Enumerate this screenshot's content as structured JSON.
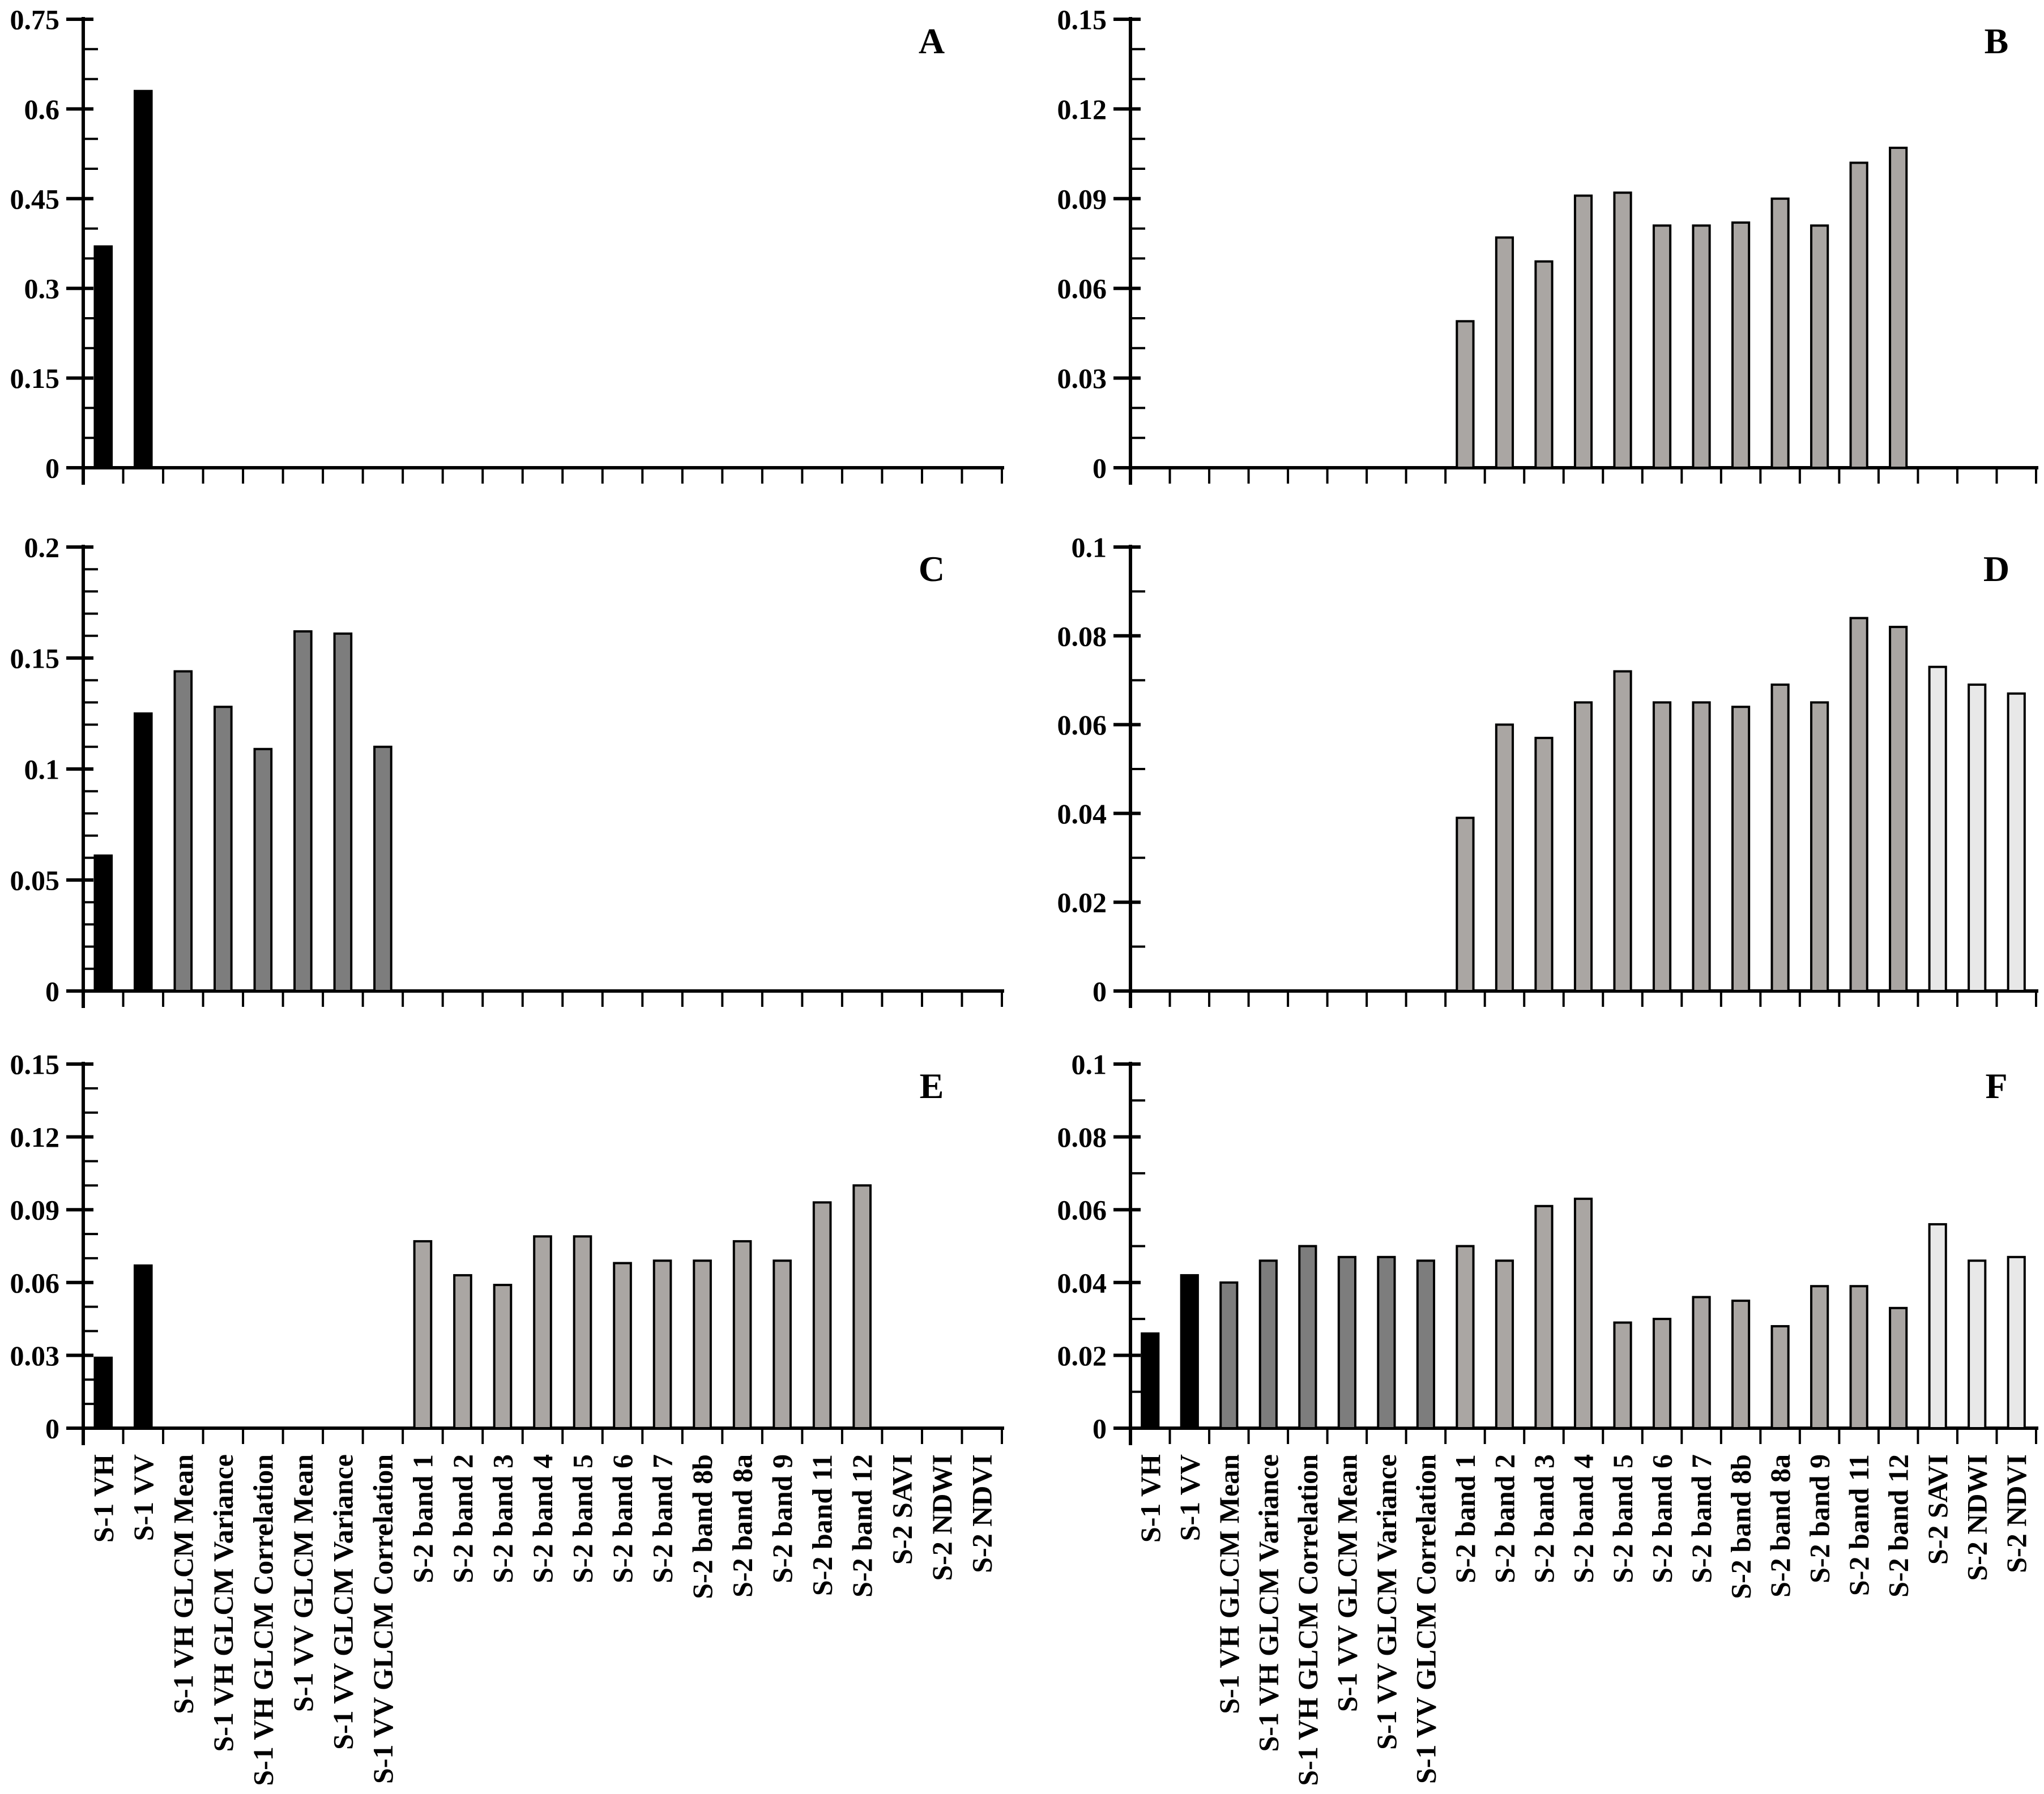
{
  "figure": {
    "background": "#ffffff",
    "colors": {
      "s1": "#000000",
      "glcm": "#7d7d7d",
      "band": "#aaa6a3",
      "index": "#e8e8e8",
      "bar_outline": "#000000",
      "axis": "#000000",
      "text": "#000000"
    }
  },
  "chart_data": {
    "type": "bar",
    "grid": false,
    "legend": "none",
    "categories": [
      "S-1 VH",
      "S-1 VV",
      "S-1 VH GLCM Mean",
      "S-1 VH GLCM Variance",
      "S-1 VH GLCM Correlation",
      "S-1 VV GLCM Mean",
      "S-1 VV GLCM Variance",
      "S-1 VV GLCM Correlation",
      "S-2 band 1",
      "S-2 band 2",
      "S-2 band 3",
      "S-2 band 4",
      "S-2 band 5",
      "S-2 band 6",
      "S-2 band 7",
      "S-2 band 8b",
      "S-2 band 8a",
      "S-2 band 9",
      "S-2 band 11",
      "S-2 band 12",
      "S-2 SAVI",
      "S-2 NDWI",
      "S-2 NDVI"
    ],
    "category_groups": [
      "s1",
      "s1",
      "glcm",
      "glcm",
      "glcm",
      "glcm",
      "glcm",
      "glcm",
      "band",
      "band",
      "band",
      "band",
      "band",
      "band",
      "band",
      "band",
      "band",
      "band",
      "band",
      "band",
      "index",
      "index",
      "index"
    ],
    "panels": [
      {
        "label": "A",
        "ylim": [
          0,
          0.75
        ],
        "ytick_major": 0.15,
        "ytick_minor": 0.05,
        "ytick_labels": [
          "0",
          "0.15",
          "0.3",
          "0.45",
          "0.6",
          "0.75"
        ],
        "values": [
          0.37,
          0.63,
          0,
          0,
          0,
          0,
          0,
          0,
          0,
          0,
          0,
          0,
          0,
          0,
          0,
          0,
          0,
          0,
          0,
          0,
          0,
          0,
          0
        ]
      },
      {
        "label": "B",
        "ylim": [
          0,
          0.15
        ],
        "ytick_major": 0.03,
        "ytick_minor": 0.01,
        "ytick_labels": [
          "0",
          "0.03",
          "0.06",
          "0.09",
          "0.12",
          "0.15"
        ],
        "values": [
          0,
          0,
          0,
          0,
          0,
          0,
          0,
          0,
          0.049,
          0.077,
          0.069,
          0.091,
          0.092,
          0.081,
          0.081,
          0.082,
          0.09,
          0.081,
          0.102,
          0.107,
          0,
          0,
          0
        ]
      },
      {
        "label": "C",
        "ylim": [
          0,
          0.2
        ],
        "ytick_major": 0.05,
        "ytick_minor": 0.01,
        "ytick_labels": [
          "0",
          "0.05",
          "0.1",
          "0.15",
          "0.2"
        ],
        "values": [
          0.061,
          0.125,
          0.144,
          0.128,
          0.109,
          0.162,
          0.161,
          0.11,
          0,
          0,
          0,
          0,
          0,
          0,
          0,
          0,
          0,
          0,
          0,
          0,
          0,
          0,
          0
        ]
      },
      {
        "label": "D",
        "ylim": [
          0,
          0.1
        ],
        "ytick_major": 0.02,
        "ytick_minor": 0.01,
        "ytick_labels": [
          "0",
          "0.02",
          "0.04",
          "0.06",
          "0.08",
          "0.1"
        ],
        "values": [
          0,
          0,
          0,
          0,
          0,
          0,
          0,
          0,
          0.039,
          0.06,
          0.057,
          0.065,
          0.072,
          0.065,
          0.065,
          0.064,
          0.069,
          0.065,
          0.084,
          0.082,
          0.073,
          0.069,
          0.067
        ]
      },
      {
        "label": "E",
        "ylim": [
          0,
          0.15
        ],
        "ytick_major": 0.03,
        "ytick_minor": 0.01,
        "ytick_labels": [
          "0",
          "0.03",
          "0.06",
          "0.09",
          "0.12",
          "0.15"
        ],
        "values": [
          0.029,
          0.067,
          0,
          0,
          0,
          0,
          0,
          0,
          0.077,
          0.063,
          0.059,
          0.079,
          0.079,
          0.068,
          0.069,
          0.069,
          0.077,
          0.069,
          0.093,
          0.1,
          0,
          0,
          0
        ]
      },
      {
        "label": "F",
        "ylim": [
          0,
          0.1
        ],
        "ytick_major": 0.02,
        "ytick_minor": 0.01,
        "ytick_labels": [
          "0",
          "0.02",
          "0.04",
          "0.06",
          "0.08",
          "0.1"
        ],
        "values": [
          0.026,
          0.042,
          0.04,
          0.046,
          0.05,
          0.047,
          0.047,
          0.046,
          0.05,
          0.046,
          0.061,
          0.063,
          0.029,
          0.03,
          0.036,
          0.035,
          0.028,
          0.039,
          0.039,
          0.033,
          0.056,
          0.046,
          0.047
        ]
      }
    ]
  }
}
